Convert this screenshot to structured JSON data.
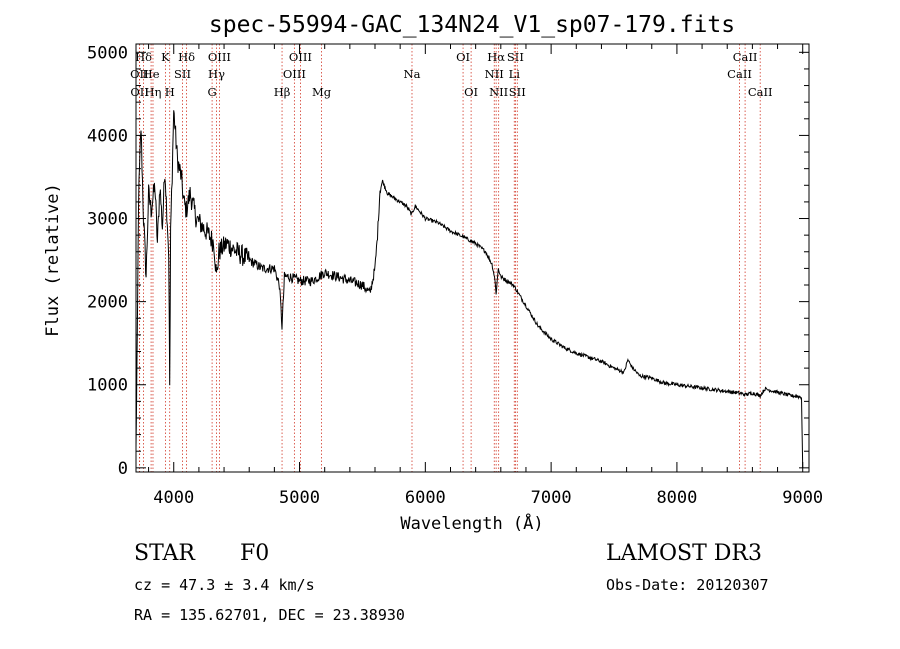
{
  "chart_data": {
    "type": "line",
    "title": "spec-55994-GAC_134N24_V1_sp07-179.fits",
    "xlabel": "Wavelength (Å)",
    "ylabel": "Flux (relative)",
    "xlim": [
      3700,
      9050
    ],
    "ylim": [
      -50,
      5100
    ],
    "x_ticks": [
      4000,
      5000,
      6000,
      7000,
      8000,
      9000
    ],
    "x_tick_labels": [
      "4000",
      "5000",
      "6000",
      "7000",
      "8000",
      "9000"
    ],
    "y_ticks": [
      0,
      1000,
      2000,
      3000,
      4000,
      5000
    ],
    "y_tick_labels": [
      "0",
      "1000",
      "2000",
      "3000",
      "4000",
      "5000"
    ],
    "series": [
      {
        "name": "spectrum",
        "x": [
          3700,
          3710,
          3720,
          3740,
          3760,
          3780,
          3800,
          3820,
          3850,
          3870,
          3890,
          3910,
          3930,
          3960,
          3968,
          3975,
          4000,
          4030,
          4060,
          4080,
          4100,
          4130,
          4180,
          4230,
          4280,
          4320,
          4340,
          4360,
          4420,
          4500,
          4600,
          4700,
          4800,
          4840,
          4861,
          4880,
          4920,
          5000,
          5100,
          5200,
          5300,
          5400,
          5500,
          5560,
          5600,
          5620,
          5640,
          5660,
          5700,
          5750,
          5800,
          5850,
          5890,
          5920,
          6000,
          6100,
          6200,
          6300,
          6400,
          6480,
          6530,
          6550,
          6563,
          6580,
          6600,
          6650,
          6700,
          6800,
          6900,
          7000,
          7100,
          7200,
          7300,
          7400,
          7500,
          7580,
          7610,
          7640,
          7700,
          7800,
          7900,
          8000,
          8100,
          8200,
          8300,
          8400,
          8498,
          8542,
          8600,
          8662,
          8700,
          8800,
          8900,
          8960,
          8990,
          9000
        ],
        "y": [
          200,
          1500,
          3200,
          4100,
          3000,
          2300,
          3300,
          3100,
          3400,
          2700,
          3400,
          2900,
          3600,
          2600,
          1000,
          2800,
          4300,
          3700,
          3500,
          3200,
          3100,
          3300,
          3000,
          2900,
          2800,
          2700,
          2300,
          2600,
          2700,
          2600,
          2500,
          2400,
          2400,
          2200,
          1700,
          2300,
          2300,
          2250,
          2250,
          2350,
          2300,
          2250,
          2200,
          2100,
          2400,
          2800,
          3350,
          3450,
          3300,
          3250,
          3200,
          3150,
          3050,
          3150,
          3000,
          2950,
          2850,
          2780,
          2700,
          2600,
          2450,
          2300,
          2100,
          2400,
          2300,
          2250,
          2200,
          1950,
          1700,
          1550,
          1450,
          1380,
          1330,
          1280,
          1200,
          1150,
          1300,
          1220,
          1110,
          1080,
          1020,
          1000,
          980,
          960,
          940,
          920,
          900,
          880,
          900,
          870,
          950,
          910,
          870,
          860,
          850,
          0
        ]
      }
    ],
    "lines": [
      {
        "label": "Hδ",
        "wave": 3760,
        "row": 1
      },
      {
        "label": "OII",
        "wave": 3727,
        "row": 2
      },
      {
        "label": "OII",
        "wave": 3729,
        "row": 3
      },
      {
        "label": "He",
        "wave": 3820,
        "row": 2
      },
      {
        "label": "Hη",
        "wave": 3835,
        "row": 3
      },
      {
        "label": "K",
        "wave": 3934,
        "row": 1
      },
      {
        "label": "H",
        "wave": 3968,
        "row": 3
      },
      {
        "label": "Hδ",
        "wave": 4102,
        "row": 1
      },
      {
        "label": "SII",
        "wave": 4070,
        "row": 2
      },
      {
        "label": "OIII",
        "wave": 4363,
        "row": 1
      },
      {
        "label": "Hγ",
        "wave": 4340,
        "row": 2
      },
      {
        "label": "G",
        "wave": 4305,
        "row": 3
      },
      {
        "label": "Hβ",
        "wave": 4861,
        "row": 3
      },
      {
        "label": "OIII",
        "wave": 5007,
        "row": 1
      },
      {
        "label": "OIII",
        "wave": 4959,
        "row": 2
      },
      {
        "label": "Mg",
        "wave": 5175,
        "row": 3
      },
      {
        "label": "Na",
        "wave": 5894,
        "row": 2
      },
      {
        "label": "OI",
        "wave": 6300,
        "row": 1
      },
      {
        "label": "OI",
        "wave": 6364,
        "row": 3
      },
      {
        "label": "Hα",
        "wave": 6563,
        "row": 1
      },
      {
        "label": "NII",
        "wave": 6548,
        "row": 2
      },
      {
        "label": "NII",
        "wave": 6583,
        "row": 3
      },
      {
        "label": "SII",
        "wave": 6716,
        "row": 1
      },
      {
        "label": "Li",
        "wave": 6707,
        "row": 2
      },
      {
        "label": "SII",
        "wave": 6731,
        "row": 3
      },
      {
        "label": "CaII",
        "wave": 8542,
        "row": 1
      },
      {
        "label": "CaII",
        "wave": 8498,
        "row": 2
      },
      {
        "label": "CaII",
        "wave": 8662,
        "row": 3
      }
    ],
    "info": {
      "class": "STAR",
      "subclass": "F0",
      "survey": "LAMOST DR3",
      "cz": "cz = 47.3 ± 3.4 km/s",
      "obs_date": "Obs-Date: 20120307",
      "coords": "RA = 135.62701, DEC =  23.38930"
    }
  }
}
